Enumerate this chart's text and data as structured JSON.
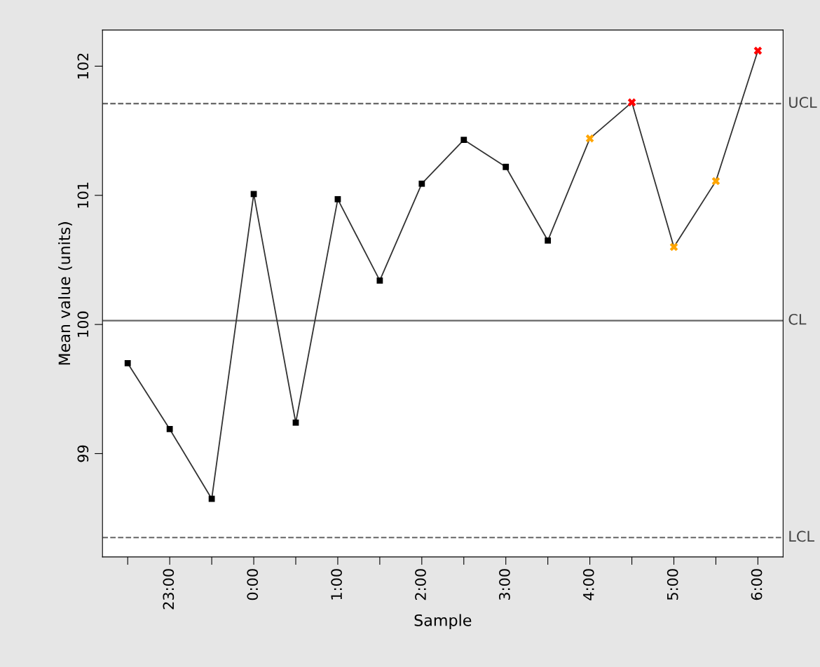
{
  "chart_data": {
    "type": "line",
    "xlabel": "Sample",
    "ylabel": "Mean value (units)",
    "categories": [
      null,
      "23:00",
      null,
      "0:00",
      null,
      "1:00",
      null,
      "2:00",
      null,
      "3:00",
      null,
      "4:00",
      null,
      "5:00",
      null,
      "6:00"
    ],
    "series": [
      {
        "color": "#333333",
        "marker": "none",
        "values": [
          99.7,
          99.19,
          98.65,
          101.01,
          99.24,
          100.97,
          100.34,
          101.09,
          101.43,
          101.22,
          100.65,
          101.44,
          101.72,
          100.6,
          101.11,
          102.12
        ]
      },
      {
        "type": "scatter",
        "color": "#000000",
        "marker": "square",
        "values": [
          99.7,
          99.19,
          98.65,
          101.01,
          99.24,
          100.97,
          100.34,
          101.09,
          101.43,
          101.22,
          100.65,
          null,
          null,
          null,
          null,
          null
        ]
      },
      {
        "type": "scatter",
        "color": "#ffa500",
        "marker": "cross",
        "values": [
          null,
          null,
          null,
          null,
          null,
          null,
          null,
          null,
          null,
          null,
          null,
          101.44,
          null,
          100.6,
          101.11,
          null
        ]
      },
      {
        "type": "scatter",
        "color": "#ff0000",
        "marker": "cross",
        "values": [
          null,
          null,
          null,
          null,
          null,
          null,
          null,
          null,
          null,
          null,
          null,
          null,
          101.72,
          null,
          null,
          102.12
        ]
      }
    ],
    "ylim": [
      98.2,
      102.28
    ],
    "yticks": [
      99,
      100,
      101,
      102
    ],
    "ref_lines": [
      {
        "axis": "y",
        "value": 101.71,
        "label": "UCL",
        "color": "#666666",
        "line_style": "dashed"
      },
      {
        "axis": "y",
        "value": 100.03,
        "label": "CL",
        "color": "#666666",
        "line_style": "solid"
      },
      {
        "axis": "y",
        "value": 98.35,
        "label": "LCL",
        "color": "#666666",
        "line_style": "dashed"
      }
    ],
    "grid": false,
    "legend": false
  }
}
